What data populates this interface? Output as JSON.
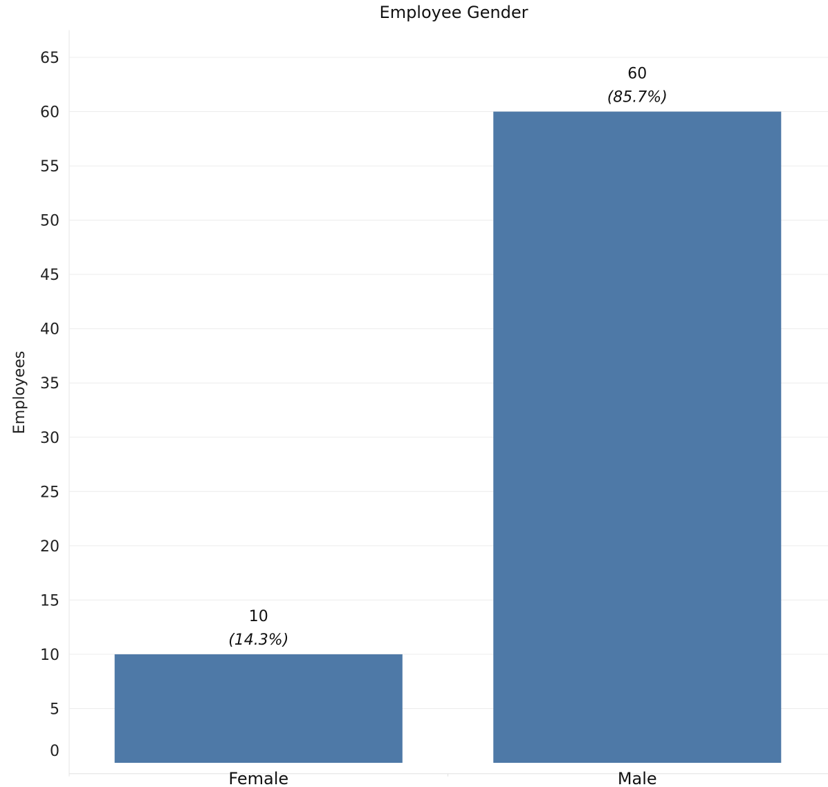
{
  "chart_data": {
    "type": "bar",
    "title": "Employee Gender",
    "xlabel": "",
    "ylabel": "Employees",
    "categories": [
      "Female",
      "Male"
    ],
    "values": [
      10,
      60
    ],
    "value_labels": [
      "10",
      "60"
    ],
    "percent_labels": [
      "(14.3%)",
      "(85.7%)"
    ],
    "yticks": [
      0,
      5,
      10,
      15,
      20,
      25,
      30,
      35,
      40,
      45,
      50,
      55,
      60,
      65
    ],
    "ylim": [
      -1,
      67
    ],
    "grid": true,
    "bar_color": "#4e79a7",
    "legend": "none"
  }
}
